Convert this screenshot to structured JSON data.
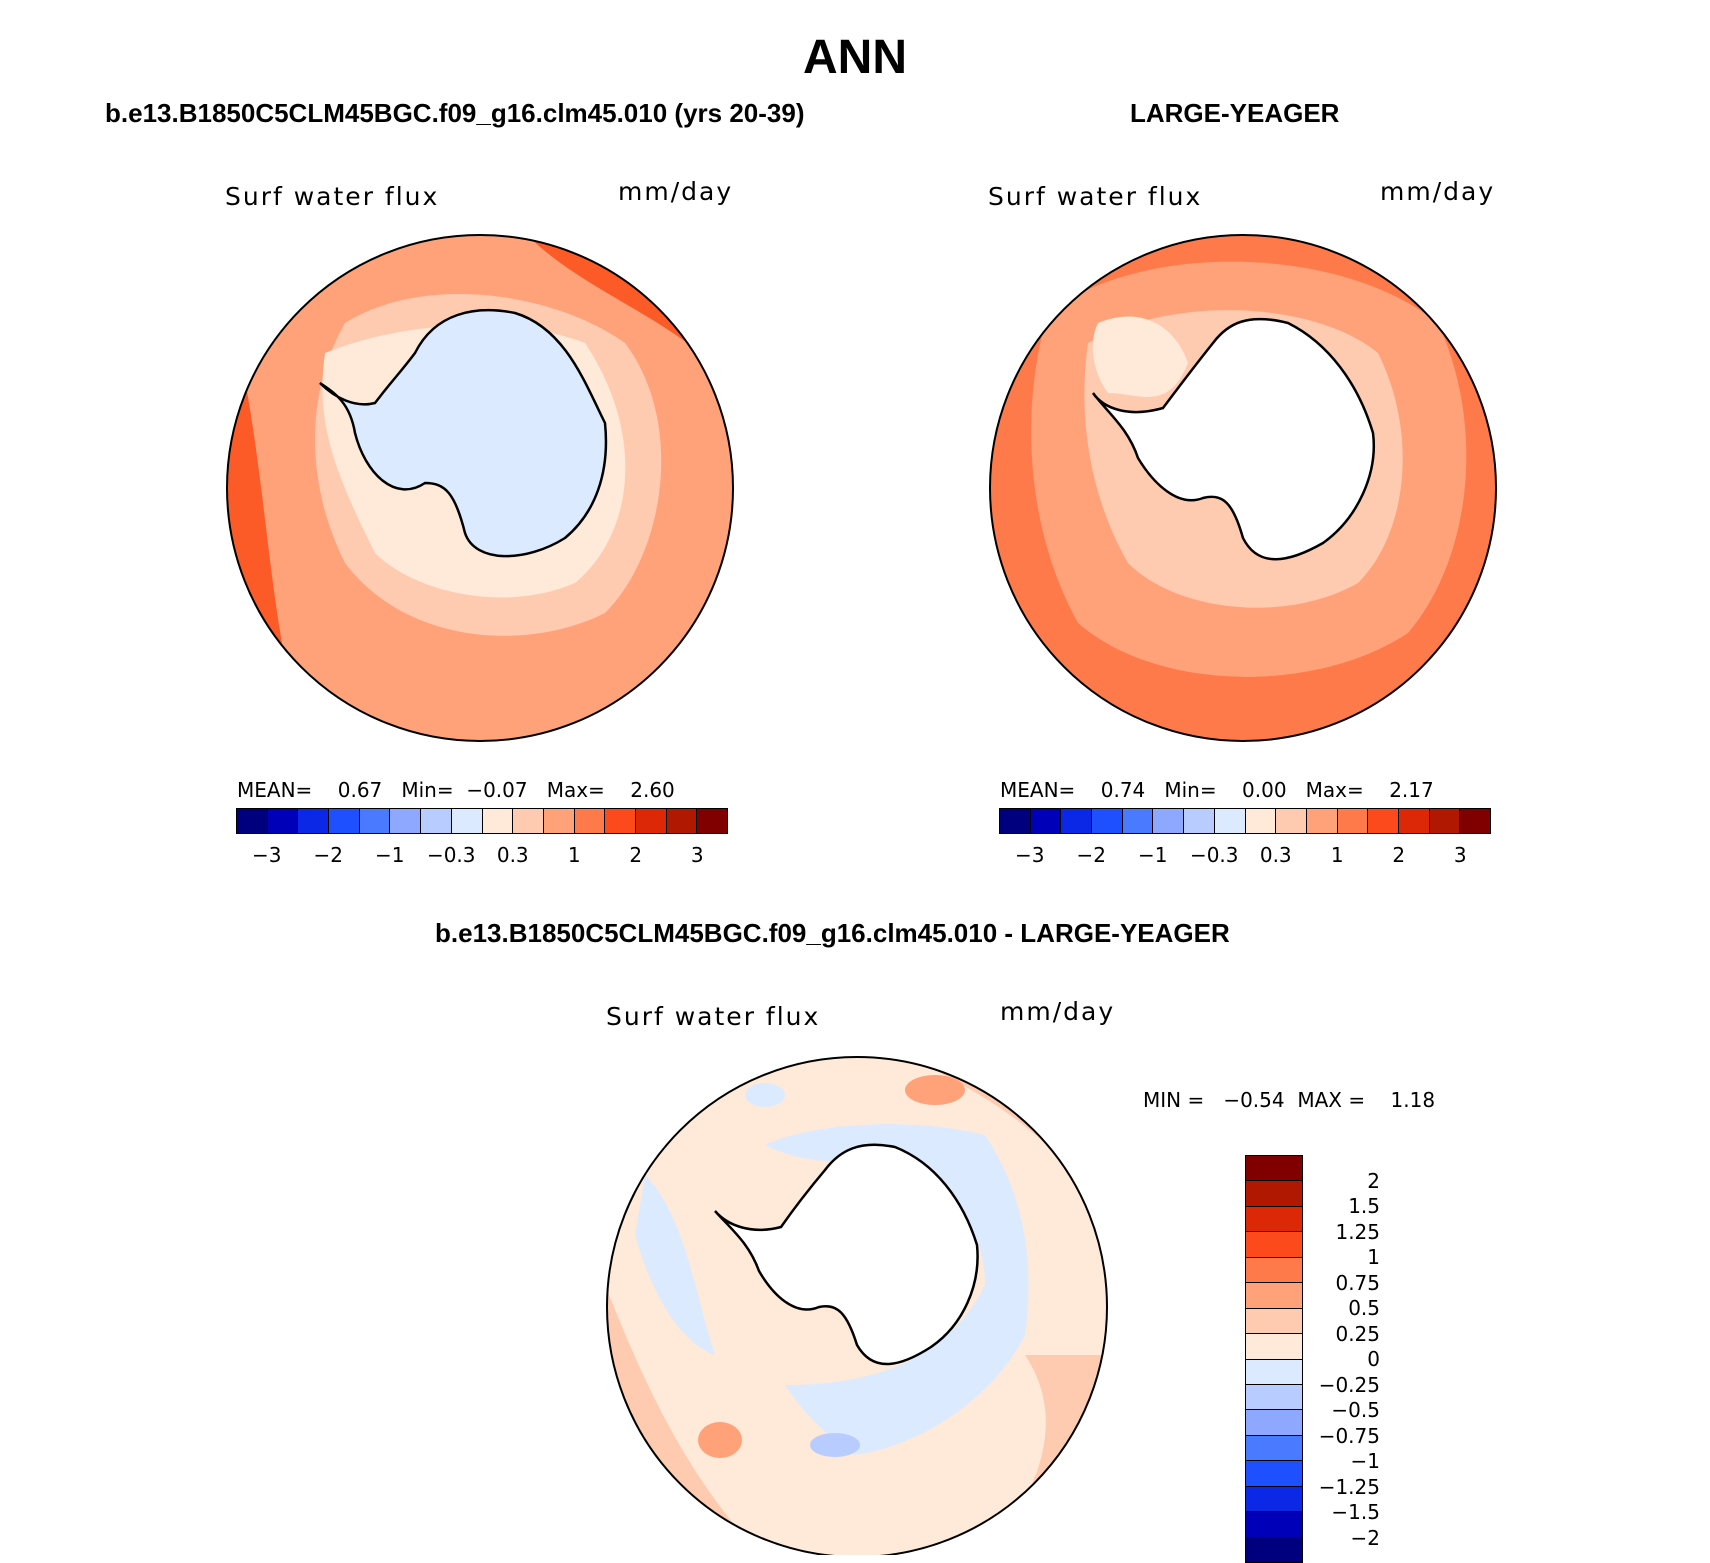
{
  "title": "ANN",
  "panels": [
    {
      "id": "model",
      "case_title": "b.e13.B1850C5CLM45BGC.f09_g16.clm45.010 (yrs 20-39)",
      "variable_label": "Surf water flux",
      "units_label": "mm/day",
      "stats": {
        "mean_label": "MEAN=",
        "mean": "0.67",
        "min_label": "Min=",
        "min": "−0.07",
        "max_label": "Max=",
        "max": "2.60"
      },
      "colorbar": {
        "colors": [
          "#00007f",
          "#0000b8",
          "#0a28e6",
          "#1e50ff",
          "#4a7aff",
          "#8fa8ff",
          "#b8ccff",
          "#dceaff",
          "#ffe9d8",
          "#ffcbb0",
          "#ffa27a",
          "#ff7a4a",
          "#fc4a1c",
          "#dd2808",
          "#b01802",
          "#800000"
        ],
        "ticks": [
          "−3",
          "−2",
          "−1",
          "−0.3",
          "0.3",
          "1",
          "2",
          "3"
        ]
      }
    },
    {
      "id": "obs",
      "case_title": "LARGE-YEAGER",
      "variable_label": "Surf water flux",
      "units_label": "mm/day",
      "stats": {
        "mean_label": "MEAN=",
        "mean": "0.74",
        "min_label": "Min=",
        "min": "0.00",
        "max_label": "Max=",
        "max": "2.17"
      },
      "colorbar": {
        "colors": [
          "#00007f",
          "#0000b8",
          "#0a28e6",
          "#1e50ff",
          "#4a7aff",
          "#8fa8ff",
          "#b8ccff",
          "#dceaff",
          "#ffe9d8",
          "#ffcbb0",
          "#ffa27a",
          "#ff7a4a",
          "#fc4a1c",
          "#dd2808",
          "#b01802",
          "#800000"
        ],
        "ticks": [
          "−3",
          "−2",
          "−1",
          "−0.3",
          "0.3",
          "1",
          "2",
          "3"
        ]
      }
    }
  ],
  "difference": {
    "case_title": "b.e13.B1850C5CLM45BGC.f09_g16.clm45.010 - LARGE-YEAGER",
    "variable_label": "Surf water flux",
    "units_label": "mm/day",
    "stats": {
      "min_label": "MIN =",
      "min": "−0.54",
      "max_label": "MAX =",
      "max": "1.18"
    },
    "colorbar": {
      "colors_top_to_bottom": [
        "#800000",
        "#b01802",
        "#dd2808",
        "#fc4a1c",
        "#ff7a4a",
        "#ffa27a",
        "#ffcbb0",
        "#ffe9d8",
        "#dceaff",
        "#b8ccff",
        "#8fa8ff",
        "#4a7aff",
        "#1e50ff",
        "#0a28e6",
        "#0000b8",
        "#00007f"
      ],
      "ticks_top_to_bottom": [
        "2",
        "1.5",
        "1.25",
        "1",
        "0.75",
        "0.5",
        "0.25",
        "0",
        "−0.25",
        "−0.5",
        "−0.75",
        "−1",
        "−1.25",
        "−1.5",
        "−2"
      ]
    }
  },
  "map_colors": {
    "ocean_outer_model": "#fc5a26",
    "ring_model": "#ff7a4a",
    "mid_model": "#ffa27a",
    "inner_model": "#ffcbb0",
    "coast_model": "#ffe9d8",
    "land_model": "#dceaff",
    "ocean_outer_obs": "#ff7a4a",
    "mid_obs": "#ffa27a",
    "inner_obs": "#ffcbb0",
    "coast_obs": "#ffe9d8",
    "land": "#ffffff",
    "diff_base": "#ffe9d8",
    "diff_pos": "#ffcbb0",
    "diff_pos2": "#ffa27a",
    "diff_neg": "#dceaff",
    "diff_neg2": "#b8ccff"
  }
}
